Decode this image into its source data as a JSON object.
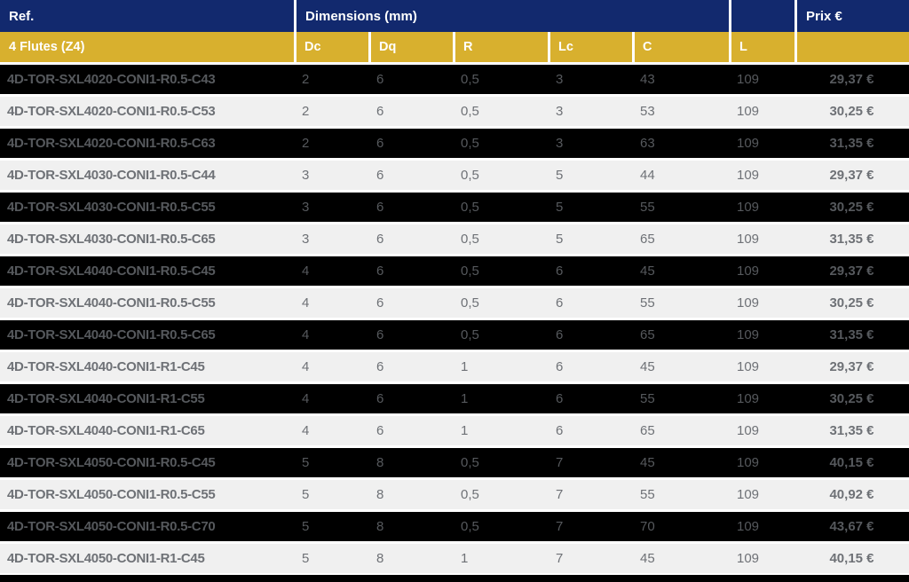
{
  "table": {
    "header1": {
      "ref_label": "Ref.",
      "dimensions_label": "Dimensions (mm)",
      "blank_label": "",
      "prix_label": "Prix €"
    },
    "header2": {
      "flutes_label": "4 Flutes (Z4)",
      "dc_label": "Dc",
      "dq_label": "Dq",
      "r_label": "R",
      "lc_label": "Lc",
      "c_label": "C",
      "l_label": "L",
      "blank_label": ""
    },
    "rows": [
      {
        "ref": "4D-TOR-SXL4020-CONI1-R0.5-C43",
        "dc": "2",
        "dq": "6",
        "r": "0,5",
        "lc": "3",
        "c": "43",
        "l": "109",
        "prix": "29,37 €"
      },
      {
        "ref": "4D-TOR-SXL4020-CONI1-R0.5-C53",
        "dc": "2",
        "dq": "6",
        "r": "0,5",
        "lc": "3",
        "c": "53",
        "l": "109",
        "prix": "30,25 €"
      },
      {
        "ref": "4D-TOR-SXL4020-CONI1-R0.5-C63",
        "dc": "2",
        "dq": "6",
        "r": "0,5",
        "lc": "3",
        "c": "63",
        "l": "109",
        "prix": "31,35 €"
      },
      {
        "ref": "4D-TOR-SXL4030-CONI1-R0.5-C44",
        "dc": "3",
        "dq": "6",
        "r": "0,5",
        "lc": "5",
        "c": "44",
        "l": "109",
        "prix": "29,37 €"
      },
      {
        "ref": "4D-TOR-SXL4030-CONI1-R0.5-C55",
        "dc": "3",
        "dq": "6",
        "r": "0,5",
        "lc": "5",
        "c": "55",
        "l": "109",
        "prix": "30,25 €"
      },
      {
        "ref": "4D-TOR-SXL4030-CONI1-R0.5-C65",
        "dc": "3",
        "dq": "6",
        "r": "0,5",
        "lc": "5",
        "c": "65",
        "l": "109",
        "prix": "31,35 €"
      },
      {
        "ref": "4D-TOR-SXL4040-CONI1-R0.5-C45",
        "dc": "4",
        "dq": "6",
        "r": "0,5",
        "lc": "6",
        "c": "45",
        "l": "109",
        "prix": "29,37 €"
      },
      {
        "ref": "4D-TOR-SXL4040-CONI1-R0.5-C55",
        "dc": "4",
        "dq": "6",
        "r": "0,5",
        "lc": "6",
        "c": "55",
        "l": "109",
        "prix": "30,25 €"
      },
      {
        "ref": "4D-TOR-SXL4040-CONI1-R0.5-C65",
        "dc": "4",
        "dq": "6",
        "r": "0,5",
        "lc": "6",
        "c": "65",
        "l": "109",
        "prix": "31,35 €"
      },
      {
        "ref": "4D-TOR-SXL4040-CONI1-R1-C45",
        "dc": "4",
        "dq": "6",
        "r": "1",
        "lc": "6",
        "c": "45",
        "l": "109",
        "prix": "29,37 €"
      },
      {
        "ref": "4D-TOR-SXL4040-CONI1-R1-C55",
        "dc": "4",
        "dq": "6",
        "r": "1",
        "lc": "6",
        "c": "55",
        "l": "109",
        "prix": "30,25 €"
      },
      {
        "ref": "4D-TOR-SXL4040-CONI1-R1-C65",
        "dc": "4",
        "dq": "6",
        "r": "1",
        "lc": "6",
        "c": "65",
        "l": "109",
        "prix": "31,35 €"
      },
      {
        "ref": "4D-TOR-SXL4050-CONI1-R0.5-C45",
        "dc": "5",
        "dq": "8",
        "r": "0,5",
        "lc": "7",
        "c": "45",
        "l": "109",
        "prix": "40,15 €"
      },
      {
        "ref": "4D-TOR-SXL4050-CONI1-R0.5-C55",
        "dc": "5",
        "dq": "8",
        "r": "0,5",
        "lc": "7",
        "c": "55",
        "l": "109",
        "prix": "40,92 €"
      },
      {
        "ref": "4D-TOR-SXL4050-CONI1-R0.5-C70",
        "dc": "5",
        "dq": "8",
        "r": "0,5",
        "lc": "7",
        "c": "70",
        "l": "109",
        "prix": "43,67 €"
      },
      {
        "ref": "4D-TOR-SXL4050-CONI1-R1-C45",
        "dc": "5",
        "dq": "8",
        "r": "1",
        "lc": "7",
        "c": "45",
        "l": "109",
        "prix": "40,15 €"
      }
    ]
  },
  "colors": {
    "navy_header": "#12296e",
    "gold_header": "#d8b02e",
    "dark_row_bg": "#000000",
    "light_row_bg": "#f0f0f0",
    "dark_row_text": "#56595d",
    "light_row_text": "#6e7176",
    "header_text": "#ffffff",
    "separator": "#ffffff"
  }
}
